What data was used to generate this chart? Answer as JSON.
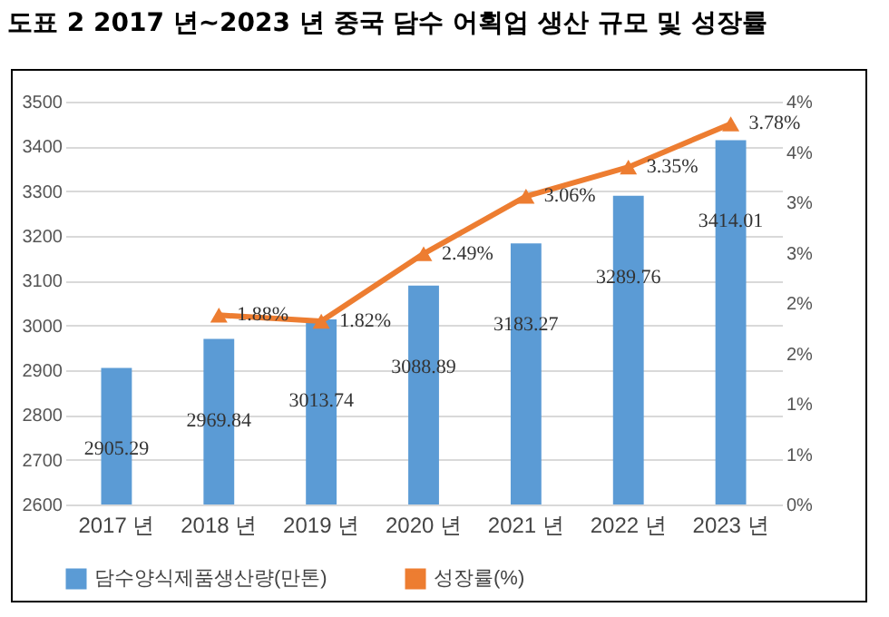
{
  "chart_data": {
    "type": "bar",
    "title": "도표 2   2017 년~2023 년 중국 담수 어획업 생산 규모 및 성장률",
    "categories": [
      "2017 년",
      "2018 년",
      "2019 년",
      "2020 년",
      "2021 년",
      "2022 년",
      "2023 년"
    ],
    "series": [
      {
        "name": "담수양식제품생산량(만톤)",
        "type": "bar",
        "color": "#5b9bd5",
        "values": [
          2905.29,
          2969.84,
          3013.74,
          3088.89,
          3183.27,
          3289.76,
          3414.01
        ],
        "value_labels": [
          "2905.29",
          "2969.84",
          "3013.74",
          "3088.89",
          "3183.27",
          "3289.76",
          "3414.01"
        ]
      },
      {
        "name": "성장률(%)",
        "type": "line",
        "axis": "y2",
        "color": "#ed7d31",
        "marker": "triangle",
        "values": [
          null,
          1.88,
          1.82,
          2.49,
          3.06,
          3.35,
          3.78
        ],
        "value_labels": [
          null,
          "1.88%",
          "1.82%",
          "2.49%",
          "3.06%",
          "3.35%",
          "3.78%"
        ]
      }
    ],
    "ylim": [
      2600,
      3500
    ],
    "yticks": [
      2600,
      2700,
      2800,
      2900,
      3000,
      3100,
      3200,
      3300,
      3400,
      3500
    ],
    "y2lim": [
      0,
      4
    ],
    "y2ticks": [
      {
        "value": 0,
        "label": "0%"
      },
      {
        "value": 0.5,
        "label": "1%"
      },
      {
        "value": 1,
        "label": "1%"
      },
      {
        "value": 1.5,
        "label": "2%"
      },
      {
        "value": 2,
        "label": "2%"
      },
      {
        "value": 2.5,
        "label": "3%"
      },
      {
        "value": 3,
        "label": "3%"
      },
      {
        "value": 3.5,
        "label": "4%"
      },
      {
        "value": 4,
        "label": "4%"
      }
    ],
    "grid": "y",
    "legend": "bottom"
  }
}
